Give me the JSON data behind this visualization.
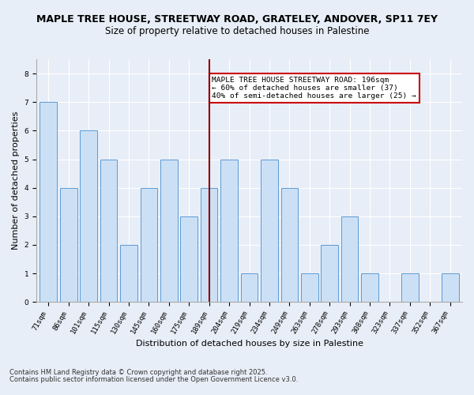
{
  "title": "MAPLE TREE HOUSE, STREETWAY ROAD, GRATELEY, ANDOVER, SP11 7EY",
  "subtitle": "Size of property relative to detached houses in Palestine",
  "xlabel": "Distribution of detached houses by size in Palestine",
  "ylabel": "Number of detached properties",
  "categories": [
    "71sqm",
    "86sqm",
    "101sqm",
    "115sqm",
    "130sqm",
    "145sqm",
    "160sqm",
    "175sqm",
    "189sqm",
    "204sqm",
    "219sqm",
    "234sqm",
    "249sqm",
    "263sqm",
    "278sqm",
    "293sqm",
    "308sqm",
    "323sqm",
    "337sqm",
    "352sqm",
    "367sqm"
  ],
  "values": [
    7,
    4,
    6,
    5,
    2,
    4,
    5,
    3,
    4,
    5,
    1,
    5,
    4,
    1,
    2,
    3,
    1,
    0,
    1,
    0,
    1
  ],
  "bar_color": "#cce0f5",
  "bar_edge_color": "#5b9bd5",
  "highlight_index": 8,
  "highlight_line_color": "#8b0000",
  "annotation_text": "MAPLE TREE HOUSE STREETWAY ROAD: 196sqm\n← 60% of detached houses are smaller (37)\n40% of semi-detached houses are larger (25) →",
  "annotation_box_edge": "#cc0000",
  "ylim": [
    0,
    8.5
  ],
  "yticks": [
    0,
    1,
    2,
    3,
    4,
    5,
    6,
    7,
    8
  ],
  "footnote1": "Contains HM Land Registry data © Crown copyright and database right 2025.",
  "footnote2": "Contains public sector information licensed under the Open Government Licence v3.0.",
  "bg_color": "#e8eef7",
  "plot_bg_color": "#e8eef7",
  "title_fontsize": 9,
  "subtitle_fontsize": 8.5,
  "axis_label_fontsize": 8,
  "tick_fontsize": 6.5,
  "annot_fontsize": 6.8,
  "footnote_fontsize": 6
}
